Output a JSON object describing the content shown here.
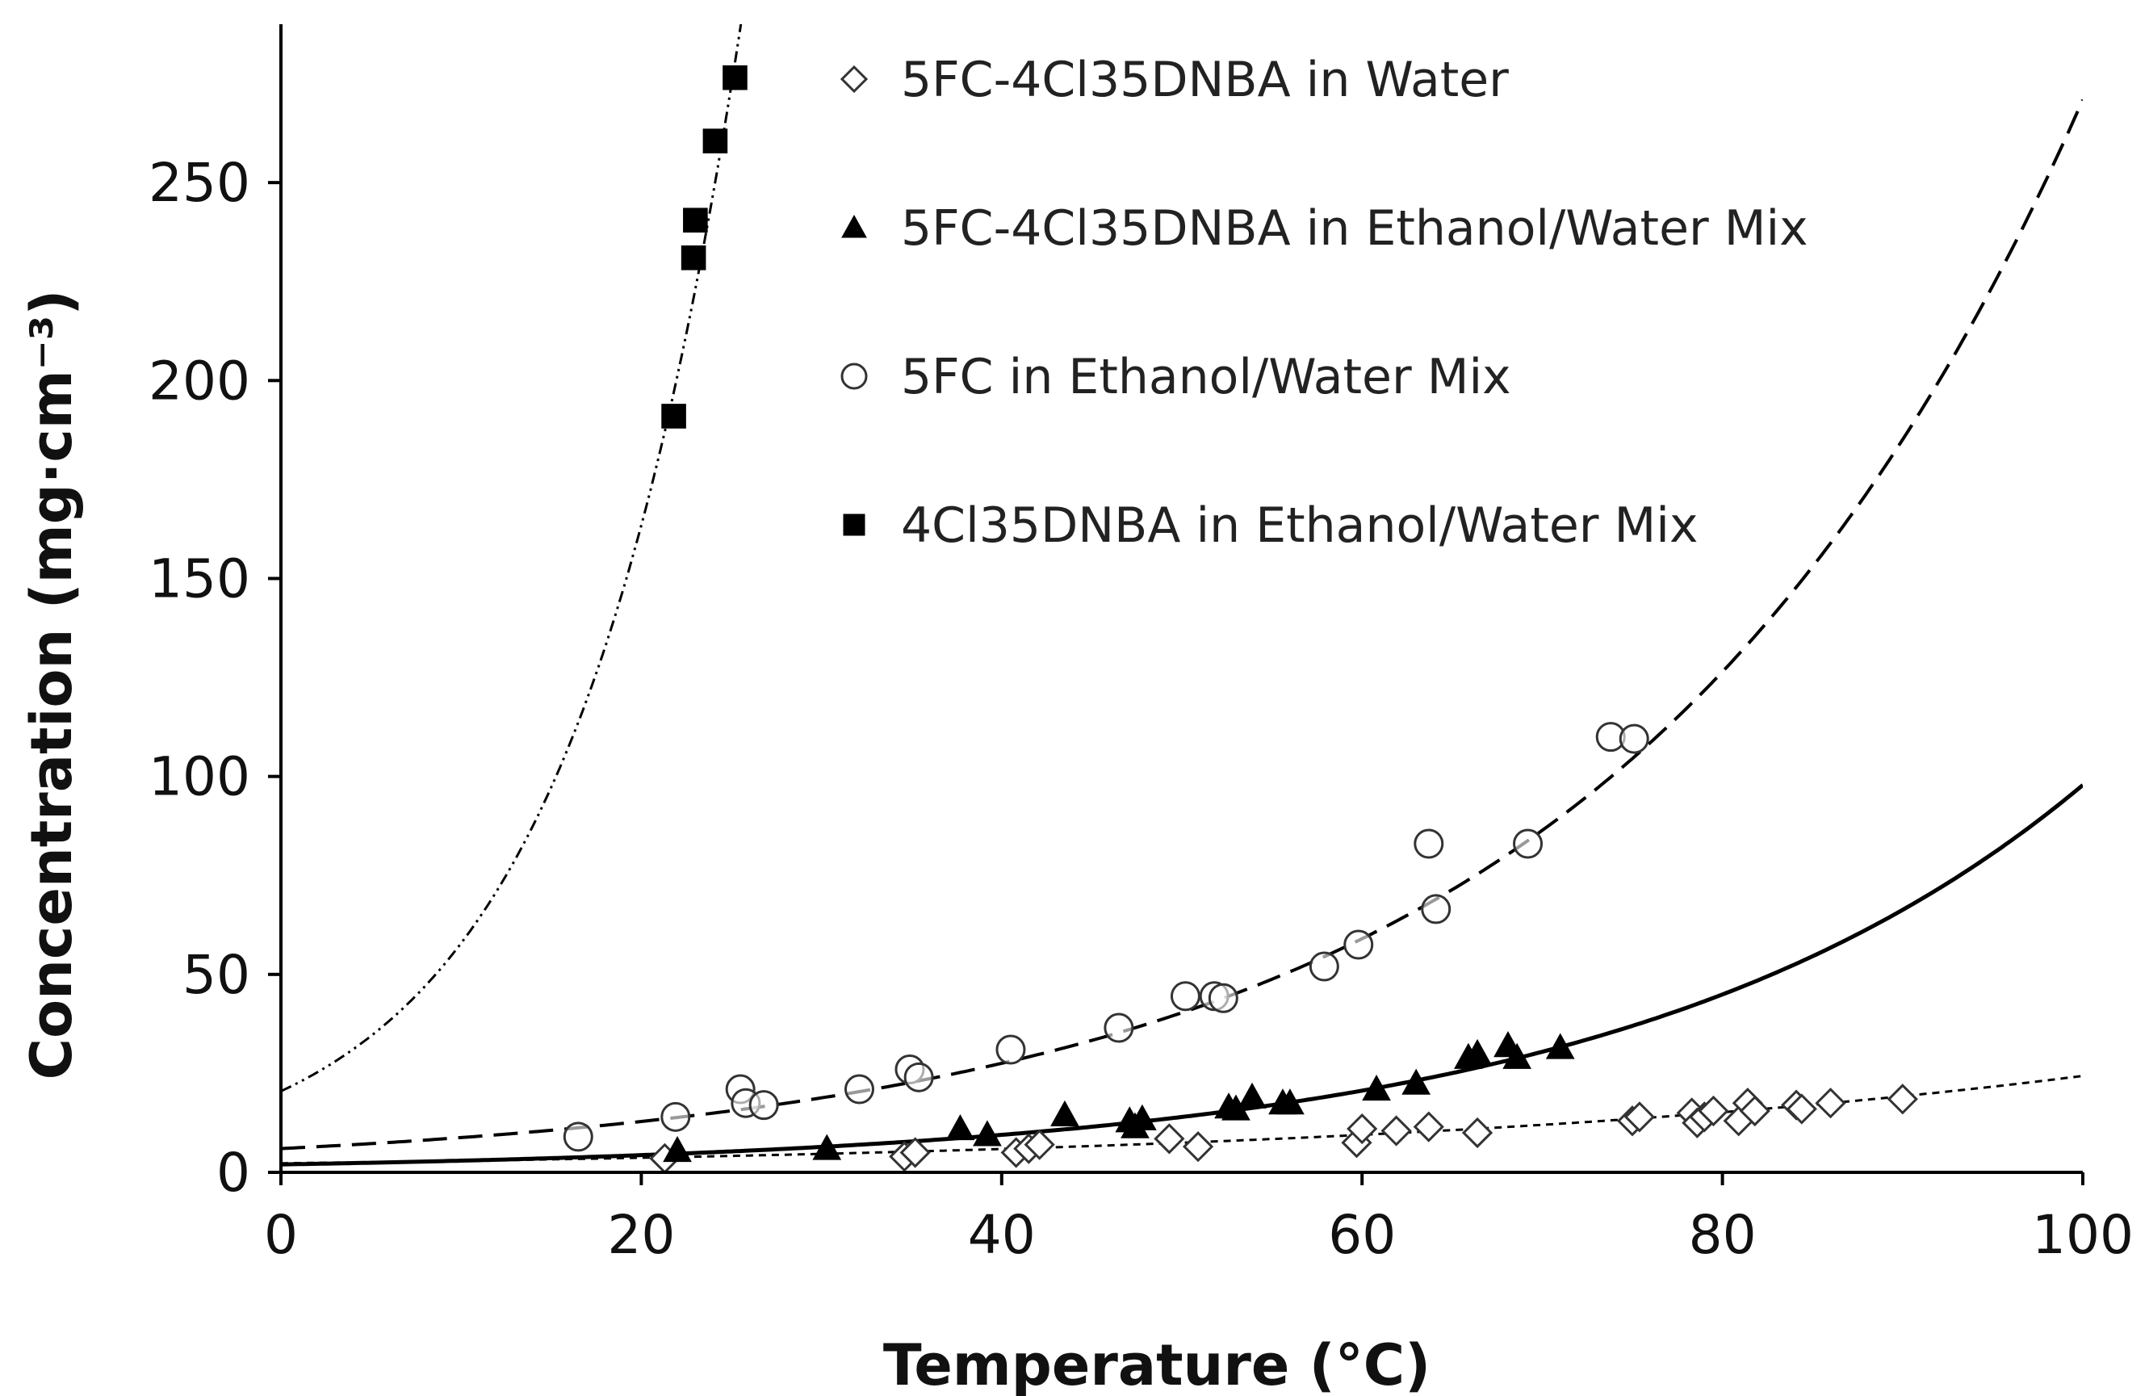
{
  "chart_data": {
    "type": "scatter",
    "title": "",
    "xlabel": "Temperature (°C)",
    "ylabel": "Concentration (mg·cm⁻³)",
    "xlim": [
      0,
      100
    ],
    "ylim": [
      0,
      290
    ],
    "xticks": [
      0,
      20,
      40,
      60,
      80,
      100
    ],
    "yticks": [
      0,
      50,
      100,
      150,
      200,
      250
    ],
    "grid": false,
    "legend_position": "top",
    "series": [
      {
        "name": "5FC-4Cl35DNBA in Water",
        "marker": "diamond-open",
        "fit": "short-dash",
        "fit_a": 2.3,
        "fit_b": 0.0236,
        "x": [
          21.3,
          34.6,
          35.2,
          40.8,
          41.5,
          42.1,
          49.3,
          50.9,
          59.7,
          60.0,
          61.9,
          63.7,
          66.4,
          75.0,
          75.4,
          78.3,
          78.6,
          79.0,
          79.5,
          80.9,
          81.4,
          81.8,
          84.1,
          84.4,
          86.0,
          90.0
        ],
        "y": [
          3.5,
          4.0,
          5.0,
          5.0,
          6.0,
          7.0,
          8.5,
          6.5,
          7.5,
          11.0,
          10.5,
          11.5,
          10.0,
          13.0,
          14.0,
          15.0,
          12.5,
          14.0,
          15.5,
          13.0,
          17.5,
          15.5,
          17.0,
          16.0,
          17.5,
          18.5
        ],
        "color": "#222222"
      },
      {
        "name": "5FC-4Cl35DNBA in Ethanol/Water Mix",
        "marker": "triangle-filled",
        "fit": "solid",
        "fit_a": 2.0,
        "fit_b": 0.0389,
        "x": [
          22.0,
          30.3,
          37.7,
          39.2,
          43.5,
          47.1,
          47.4,
          47.8,
          52.6,
          53.0,
          53.9,
          55.6,
          56.0,
          60.8,
          63.0,
          65.9,
          66.4,
          68.1,
          68.6,
          71.0
        ],
        "y": [
          5.5,
          6.0,
          11.0,
          9.5,
          14.5,
          13.0,
          11.5,
          13.5,
          16.5,
          16.0,
          19.0,
          17.5,
          17.5,
          21.0,
          22.5,
          29.0,
          30.0,
          32.0,
          29.0,
          31.5
        ],
        "color": "#000000"
      },
      {
        "name": "5FC in Ethanol/Water Mix",
        "marker": "circle-open",
        "fit": "long-dash",
        "fit_a": 6.0,
        "fit_b": 0.0381,
        "x": [
          16.5,
          21.9,
          25.5,
          25.8,
          26.8,
          32.1,
          34.9,
          35.4,
          40.5,
          46.5,
          50.2,
          51.8,
          52.3,
          57.9,
          59.8,
          63.7,
          64.1,
          69.2,
          73.8,
          75.1
        ],
        "y": [
          9.0,
          14.0,
          21.0,
          17.5,
          17.0,
          21.0,
          26.0,
          24.0,
          31.0,
          36.5,
          44.5,
          44.5,
          44.0,
          52.0,
          57.5,
          83.0,
          66.5,
          83.0,
          110.0,
          109.5
        ],
        "color": "#222222"
      },
      {
        "name": "4Cl35DNBA in Ethanol/Water Mix",
        "marker": "square-filled",
        "fit": "dash-dot-dot",
        "fit_a": 20.5,
        "fit_b": 0.1038,
        "x": [
          21.8,
          22.9,
          23.0,
          24.1,
          25.2
        ],
        "y": [
          191.0,
          231.0,
          240.5,
          260.5,
          276.5
        ],
        "color": "#000000"
      }
    ]
  }
}
